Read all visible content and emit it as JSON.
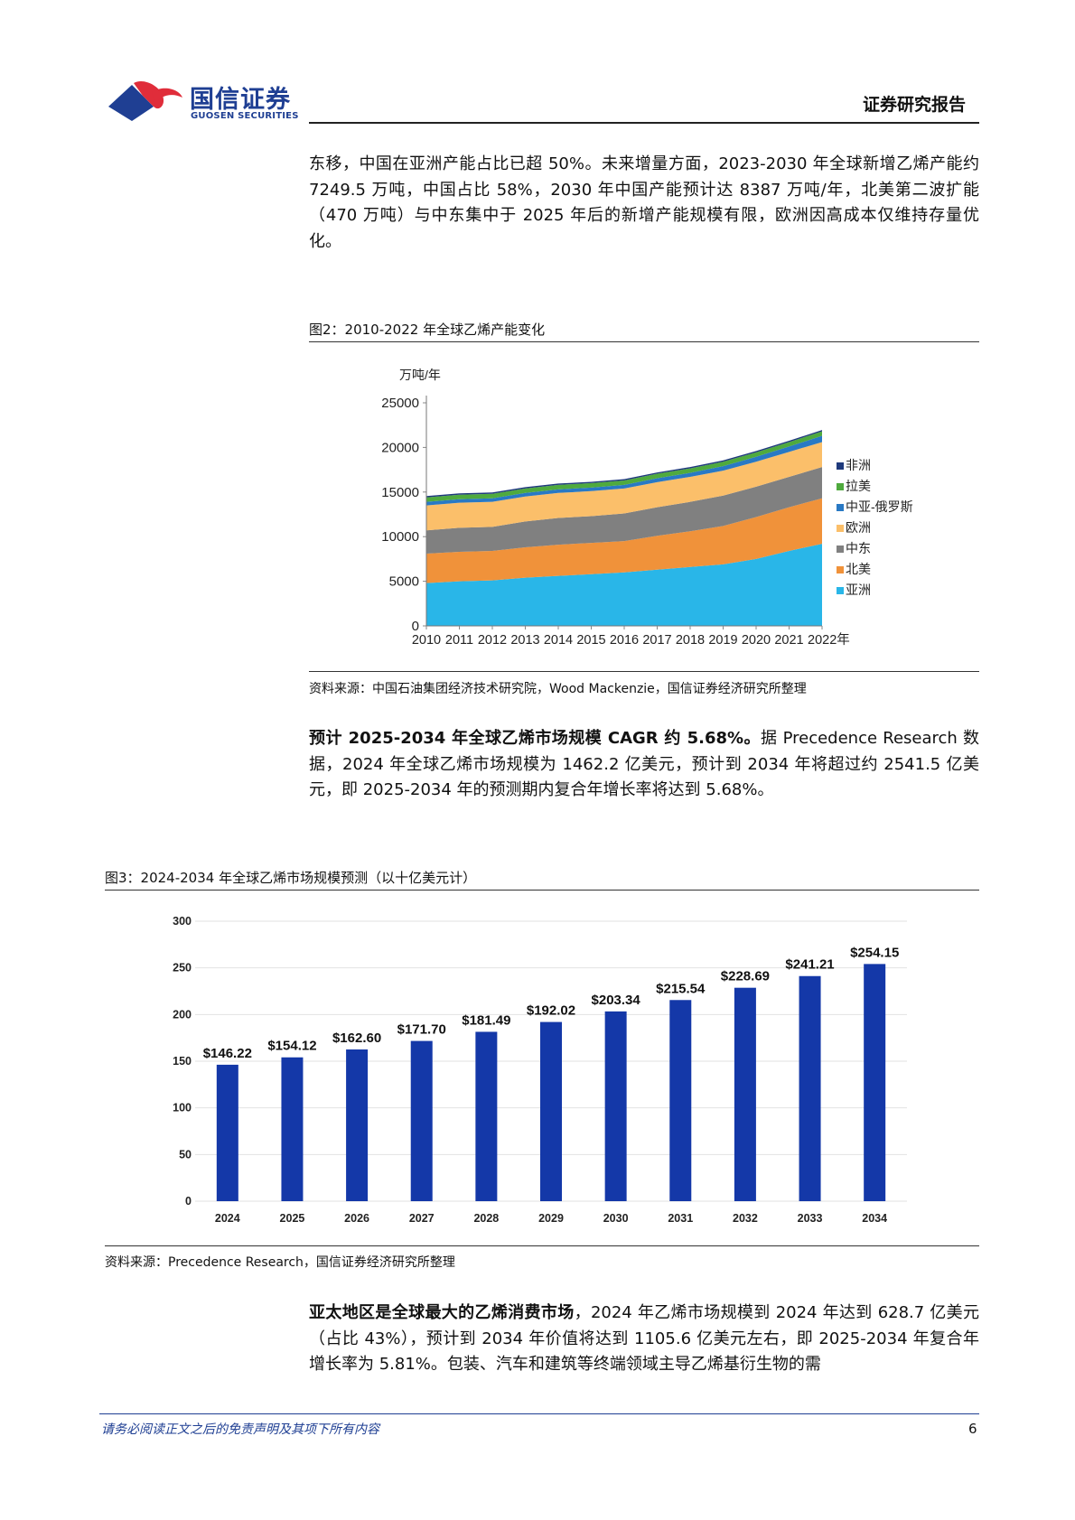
{
  "header": {
    "logo_zh": "国信证券",
    "logo_en": "GUOSEN SECURITIES",
    "report_type": "证券研究报告"
  },
  "paragraph1": "东移，中国在亚洲产能占比已超 50%。未来增量方面，2023-2030 年全球新增乙烯产能约 7249.5 万吨，中国占比 58%，2030 年中国产能预计达 8387 万吨/年，北美第二波扩能（470 万吨）与中东集中于 2025 年后的新增产能规模有限，欧洲因高成本仅维持存量优化。",
  "figure2": {
    "caption": "图2：2010-2022 年全球乙烯产能变化",
    "source": "资料来源：中国石油集团经济技术研究院，Wood Mackenzie，国信证券经济研究所整理"
  },
  "paragraph2": {
    "bold": "预计 2025-2034 年全球乙烯市场规模 CAGR 约 5.68%。",
    "text": "据 Precedence Research 数据，2024 年全球乙烯市场规模为 1462.2 亿美元，预计到 2034 年将超过约 2541.5 亿美元，即 2025-2034 年的预测期内复合年增长率将达到 5.68%。"
  },
  "figure3": {
    "caption": "图3：2024-2034 年全球乙烯市场规模预测（以十亿美元计）",
    "source": "资料来源：Precedence Research，国信证券经济研究所整理"
  },
  "paragraph3": {
    "bold": "亚太地区是全球最大的乙烯消费市场",
    "text": "，2024 年乙烯市场规模到 2024 年达到 628.7 亿美元（占比 43%），预计到 2034 年价值将达到 1105.6 亿美元左右，即 2025-2034 年复合年增长率为 5.81%。包装、汽车和建筑等终端领域主导乙烯基衍生物的需"
  },
  "footer": {
    "disclaimer": "请务必阅读正文之后的免责声明及其项下所有内容",
    "page_number": "6"
  },
  "chart_data": [
    {
      "type": "area",
      "stacked": true,
      "ylabel": "万吨/年",
      "ylim": [
        0,
        25000
      ],
      "yticks": [
        0,
        5000,
        10000,
        15000,
        20000,
        25000
      ],
      "x": [
        "2010",
        "2011",
        "2012",
        "2013",
        "2014",
        "2015",
        "2016",
        "2017",
        "2018",
        "2019",
        "2020",
        "2021",
        "2022年"
      ],
      "legend_position": "right",
      "series": [
        {
          "name": "亚洲",
          "color": "#29b6e8",
          "values": [
            4800,
            5000,
            5100,
            5400,
            5600,
            5800,
            6000,
            6300,
            6600,
            6900,
            7500,
            8400,
            9200
          ]
        },
        {
          "name": "北美",
          "color": "#f0923a",
          "values": [
            3300,
            3300,
            3300,
            3400,
            3500,
            3500,
            3500,
            3800,
            4000,
            4300,
            4700,
            4900,
            5100
          ]
        },
        {
          "name": "中东",
          "color": "#808080",
          "values": [
            2600,
            2700,
            2700,
            2900,
            3000,
            3000,
            3100,
            3200,
            3300,
            3400,
            3400,
            3400,
            3500
          ]
        },
        {
          "name": "欧洲",
          "color": "#fbbf6a",
          "values": [
            2800,
            2800,
            2800,
            2800,
            2800,
            2800,
            2800,
            2800,
            2800,
            2800,
            2800,
            2800,
            2800
          ]
        },
        {
          "name": "中亚-俄罗斯",
          "color": "#2979c4",
          "values": [
            400,
            400,
            400,
            400,
            400,
            400,
            400,
            450,
            450,
            500,
            550,
            600,
            700
          ]
        },
        {
          "name": "拉美",
          "color": "#4faa3e",
          "values": [
            500,
            500,
            500,
            500,
            500,
            500,
            500,
            500,
            500,
            500,
            500,
            500,
            500
          ]
        },
        {
          "name": "非洲",
          "color": "#1f3a7c",
          "values": [
            150,
            150,
            150,
            150,
            150,
            150,
            150,
            150,
            150,
            150,
            150,
            150,
            150
          ]
        }
      ]
    },
    {
      "type": "bar",
      "categories": [
        "2024",
        "2025",
        "2026",
        "2027",
        "2028",
        "2029",
        "2030",
        "2031",
        "2032",
        "2033",
        "2034"
      ],
      "values": [
        146.22,
        154.12,
        162.6,
        171.7,
        181.49,
        192.02,
        203.34,
        215.54,
        228.69,
        241.21,
        254.15
      ],
      "labels": [
        "$146.22",
        "$154.12",
        "$162.60",
        "$171.70",
        "$181.49",
        "$192.02",
        "$203.34",
        "$215.54",
        "$228.69",
        "$241.21",
        "$254.15"
      ],
      "ylim": [
        0,
        300
      ],
      "yticks": [
        0,
        50,
        100,
        150,
        200,
        250,
        300
      ],
      "bar_color": "#1438a8",
      "grid": true
    }
  ]
}
